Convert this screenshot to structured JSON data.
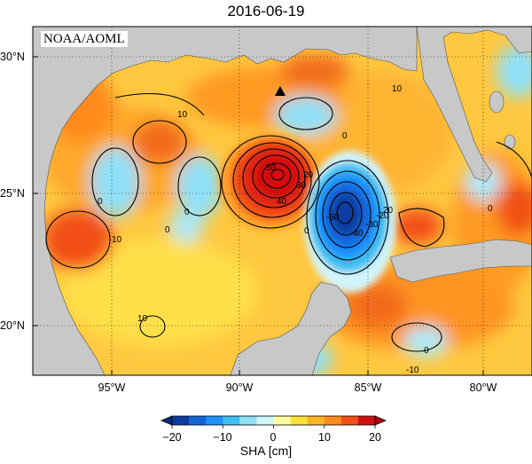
{
  "title": "2016-06-19",
  "credit": "NOAA/AOML",
  "axes": {
    "lat_ticks": [
      "30°N",
      "25°N",
      "20°N"
    ],
    "lon_ticks": [
      "95°W",
      "90°W",
      "85°W",
      "80°W"
    ]
  },
  "contour_labels": [
    "10",
    "10",
    "10",
    "10",
    "0",
    "0",
    "0",
    "0",
    "0",
    "0",
    "0",
    "-10",
    "50",
    "40",
    "30",
    "20",
    "-50",
    "-40",
    "-30",
    "-20",
    "20"
  ],
  "colorbar": {
    "label": "SHA [cm]",
    "ticks": [
      "−20",
      "−10",
      "0",
      "10",
      "20"
    ],
    "range": [
      -20,
      20
    ],
    "colors": [
      "#0b3ca0",
      "#1565d8",
      "#1e90ff",
      "#3cbef0",
      "#8fe0f7",
      "#d2f5fb",
      "#ffffa0",
      "#ffe038",
      "#ffb428",
      "#ff8a1e",
      "#f25018",
      "#d21010"
    ]
  }
}
